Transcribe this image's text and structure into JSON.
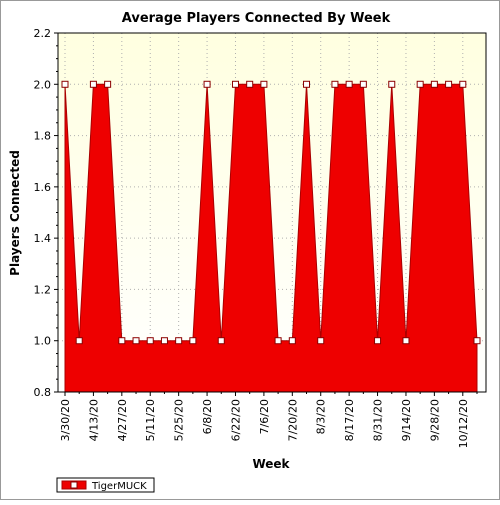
{
  "chart_data": {
    "type": "area",
    "title": "Average Players Connected By Week",
    "xlabel": "Week",
    "ylabel": "Players Connected",
    "ylim": [
      0.8,
      2.2
    ],
    "yticks": [
      "0.8",
      "1.0",
      "1.2",
      "1.4",
      "1.6",
      "1.8",
      "2.0",
      "2.2"
    ],
    "ytick_values": [
      0.8,
      1.0,
      1.2,
      1.4,
      1.6,
      1.8,
      2.0,
      2.2
    ],
    "x_tick_labels": [
      "3/30/20",
      "4/13/20",
      "4/27/20",
      "5/11/20",
      "5/25/20",
      "6/8/20",
      "6/22/20",
      "7/6/20",
      "7/20/20",
      "8/3/20",
      "8/17/20",
      "8/31/20",
      "9/14/20",
      "9/28/20",
      "10/12/20"
    ],
    "grid": true,
    "legend_position": "bottom-left",
    "series": [
      {
        "name": "TigerMUCK",
        "color": "#ee0000",
        "x": [
          "3/30/20",
          "4/6/20",
          "4/13/20",
          "4/20/20",
          "4/27/20",
          "5/4/20",
          "5/11/20",
          "5/18/20",
          "5/25/20",
          "6/1/20",
          "6/8/20",
          "6/15/20",
          "6/22/20",
          "6/29/20",
          "7/6/20",
          "7/13/20",
          "7/20/20",
          "7/27/20",
          "8/3/20",
          "8/10/20",
          "8/17/20",
          "8/24/20",
          "8/31/20",
          "9/7/20",
          "9/14/20",
          "9/21/20",
          "9/28/20",
          "10/5/20",
          "10/12/20",
          "10/19/20"
        ],
        "values": [
          2.0,
          1.0,
          2.0,
          2.0,
          1.0,
          1.0,
          1.0,
          1.0,
          1.0,
          1.0,
          2.0,
          1.0,
          2.0,
          2.0,
          2.0,
          1.0,
          1.0,
          2.0,
          1.0,
          2.0,
          2.0,
          2.0,
          1.0,
          2.0,
          1.0,
          2.0,
          2.0,
          2.0,
          2.0,
          1.0
        ]
      }
    ],
    "colors": {
      "plot_bg_top": "#ffffe0",
      "plot_bg_bottom": "#ffffff",
      "area_fill": "#ee0000",
      "area_stroke": "#aa0000",
      "grid": "#b0b0b0"
    }
  }
}
